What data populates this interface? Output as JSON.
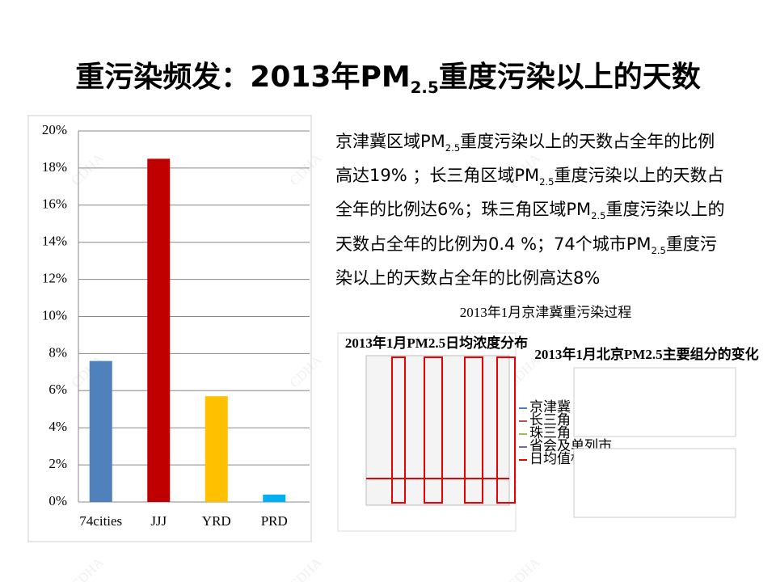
{
  "header": {
    "title": [
      "重污染频发：2013年PM",
      "2.5",
      "重度污染以上的天数"
    ]
  },
  "watermark": "CDHA",
  "chart_data": {
    "type": "bar",
    "categories": [
      "74cities",
      "JJJ",
      "YRD",
      "PRD"
    ],
    "values": [
      7.6,
      18.5,
      5.7,
      0.4
    ],
    "colors": [
      "#4f81bd",
      "#c00000",
      "#ffc000",
      "#00b0f0"
    ],
    "ylim": [
      0,
      20
    ],
    "yticks": [
      {
        "value": 0,
        "label": "0%"
      },
      {
        "value": 2,
        "label": "2%"
      },
      {
        "value": 4,
        "label": "4%"
      },
      {
        "value": 6,
        "label": "6%"
      },
      {
        "value": 8,
        "label": "8%"
      },
      {
        "value": 10,
        "label": "10%"
      },
      {
        "value": 12,
        "label": "12%"
      },
      {
        "value": 14,
        "label": "14%"
      },
      {
        "value": 16,
        "label": "16%"
      },
      {
        "value": 18,
        "label": "18%"
      },
      {
        "value": 20,
        "label": "20%"
      }
    ],
    "grid": true
  },
  "text": {
    "segments": [
      "京津冀区域PM",
      "2.5",
      "重度污染以上的天数占全年的比例高达19% ；长三角区域PM",
      "2.5",
      "重度污染以上的天数占全年的比例达6%；珠三角区域PM",
      "2.5",
      "重度污染以上的天数占全年的比例为0.4 %；74个城市PM",
      "2.5",
      "重度污染以上的天数占全年的比例高达8%"
    ]
  },
  "figure": {
    "caption": "2013年1月京津冀重污染过程",
    "left_title": "2013年1月PM2.5日均浓度分布",
    "left_legend": [
      "京津冀",
      "长三角",
      "珠三角",
      "省会及单列市",
      "日均值标准"
    ],
    "right_title": "2013年1月北京PM2.5主要组分的变化"
  }
}
